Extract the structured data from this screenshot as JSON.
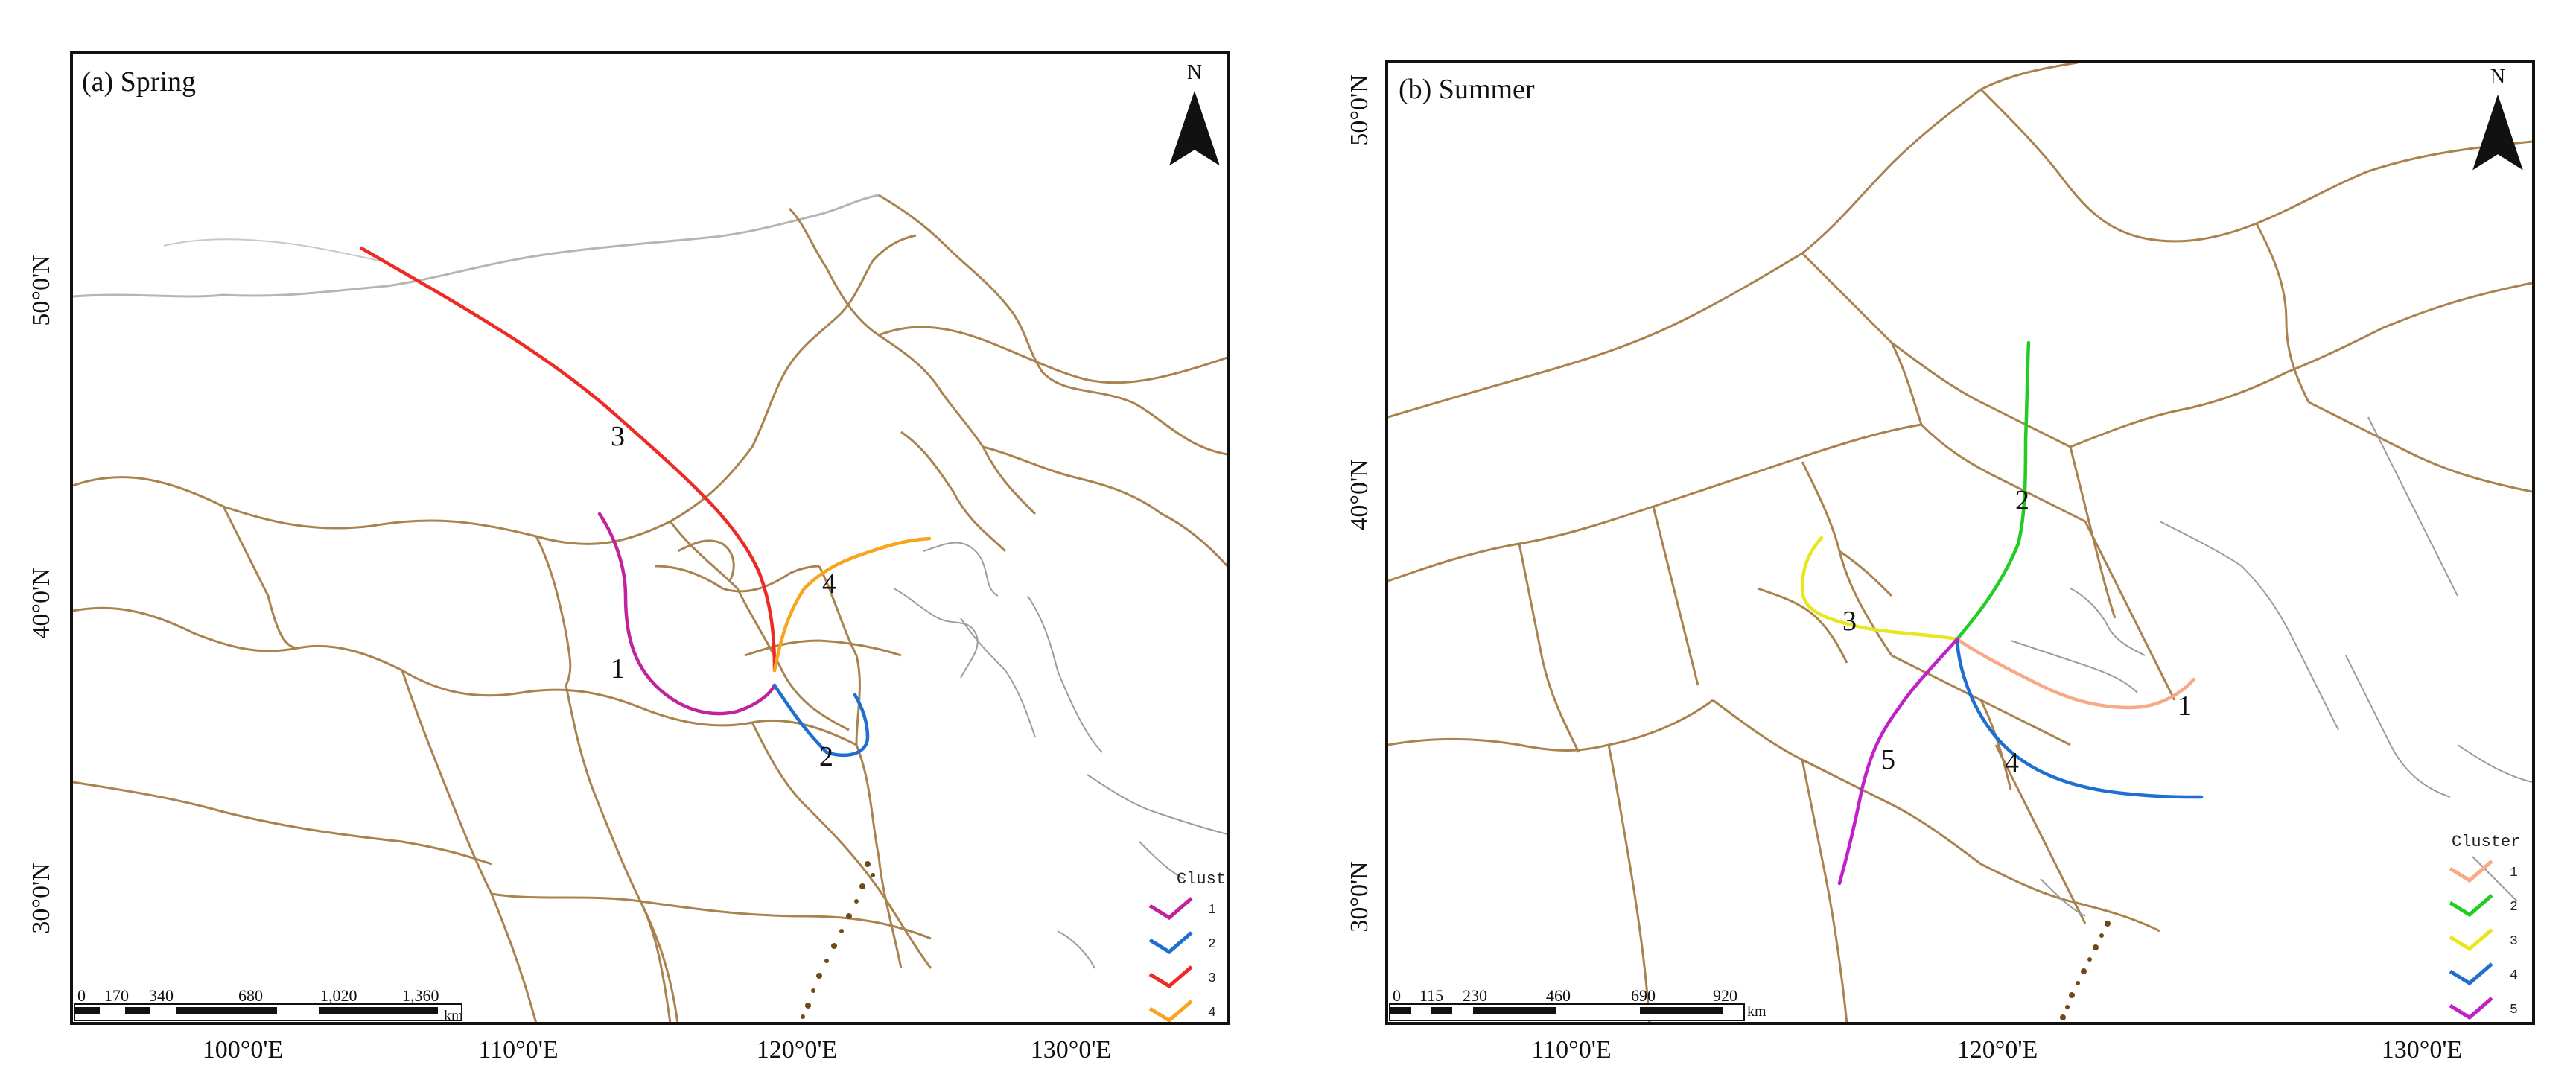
{
  "colors": {
    "border": "#a9824e",
    "coast": "#9a9a9a",
    "frame": "#111111",
    "land_tint": "#ffffff"
  },
  "panels": [
    {
      "label": "(a) Spring",
      "north": "N",
      "lon_labels": [
        "100°0'E",
        "110°0'E",
        "120°0'E",
        "130°0'E"
      ],
      "lat_labels": [
        "50°0'N",
        "40°0'N",
        "30°0'N"
      ],
      "scale_numbers": [
        "0",
        "170",
        "340",
        "680",
        "1,020",
        "1,360"
      ],
      "scale_unit": "km",
      "legend_title": "Cluster",
      "clusters": [
        {
          "id": "1",
          "color": "#c0239c"
        },
        {
          "id": "2",
          "color": "#1f6fd0"
        },
        {
          "id": "3",
          "color": "#ee2a24"
        },
        {
          "id": "4",
          "color": "#f8a51d"
        }
      ]
    },
    {
      "label": "(b) Summer",
      "north": "N",
      "lon_labels": [
        "110°0'E",
        "120°0'E",
        "130°0'E"
      ],
      "lat_labels": [
        "50°0'N",
        "40°0'N",
        "30°0'N"
      ],
      "scale_numbers": [
        "0",
        "115",
        "230",
        "460",
        "690",
        "920"
      ],
      "scale_unit": "km",
      "legend_title": "Cluster",
      "clusters": [
        {
          "id": "1",
          "color": "#f7a988"
        },
        {
          "id": "2",
          "color": "#22cc22"
        },
        {
          "id": "3",
          "color": "#e8e61c"
        },
        {
          "id": "4",
          "color": "#1f6fd0"
        },
        {
          "id": "5",
          "color": "#c020c8"
        }
      ]
    }
  ]
}
